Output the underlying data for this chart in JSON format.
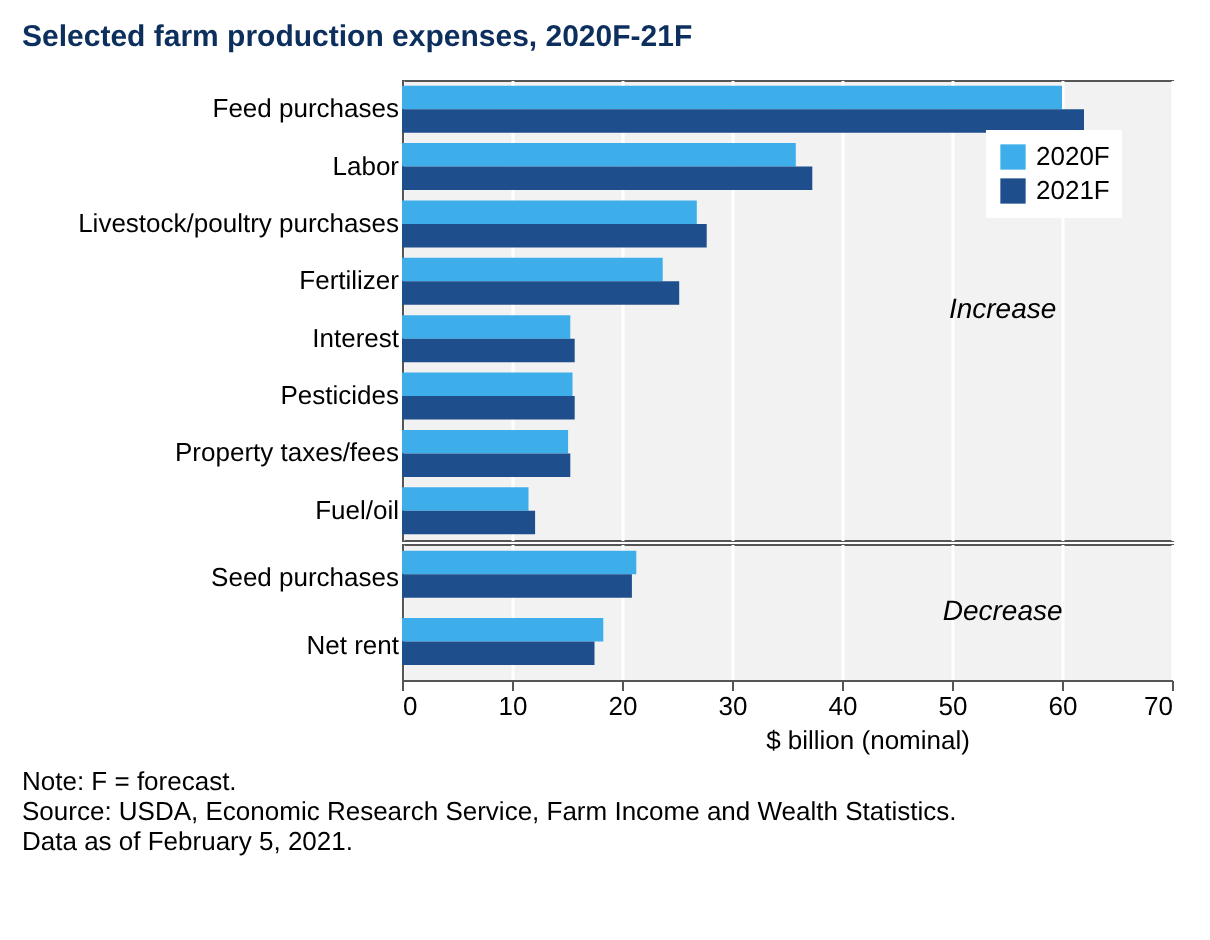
{
  "chart_data": [
    {
      "type": "bar",
      "orientation": "horizontal",
      "title": "Selected farm production expenses, 2020F-21F",
      "categories": [
        "Feed purchases",
        "Labor",
        "Livestock/poultry purchases",
        "Fertilizer",
        "Interest",
        "Pesticides",
        "Property taxes/fees",
        "Fuel/oil"
      ],
      "series": [
        {
          "name": "2020F",
          "color": "#3daee9",
          "values": [
            60.0,
            35.8,
            26.8,
            23.7,
            15.3,
            15.5,
            15.1,
            11.5
          ]
        },
        {
          "name": "2021F",
          "color": "#1f4e8c",
          "values": [
            62.0,
            37.3,
            27.7,
            25.2,
            15.7,
            15.7,
            15.3,
            12.1
          ]
        }
      ],
      "xlim": [
        0,
        70
      ],
      "xticks": [
        0,
        10,
        20,
        30,
        40,
        50,
        60,
        70
      ],
      "grid": "x",
      "legend": "top right",
      "tick_labels": "y",
      "annotations": [
        "Increase"
      ]
    },
    {
      "type": "bar",
      "orientation": "horizontal",
      "xlabel": "$ billion (nominal)",
      "categories": [
        "Seed purchases",
        "Net rent"
      ],
      "series": [
        {
          "color": "#3daee9",
          "values": [
            21.3,
            18.3
          ]
        },
        {
          "color": "#1f4e8c",
          "values": [
            20.9,
            17.5
          ]
        }
      ],
      "xlim": [
        0,
        70
      ],
      "xticks": [
        0,
        10,
        20,
        30,
        40,
        50,
        60,
        70
      ],
      "grid": "x",
      "annotations": [
        "Decrease",
        "Note: F = forecast.",
        "Source: USDA, Economic Research Service, Farm Income and Wealth Statistics.",
        "Data as of February 5, 2021."
      ]
    }
  ]
}
